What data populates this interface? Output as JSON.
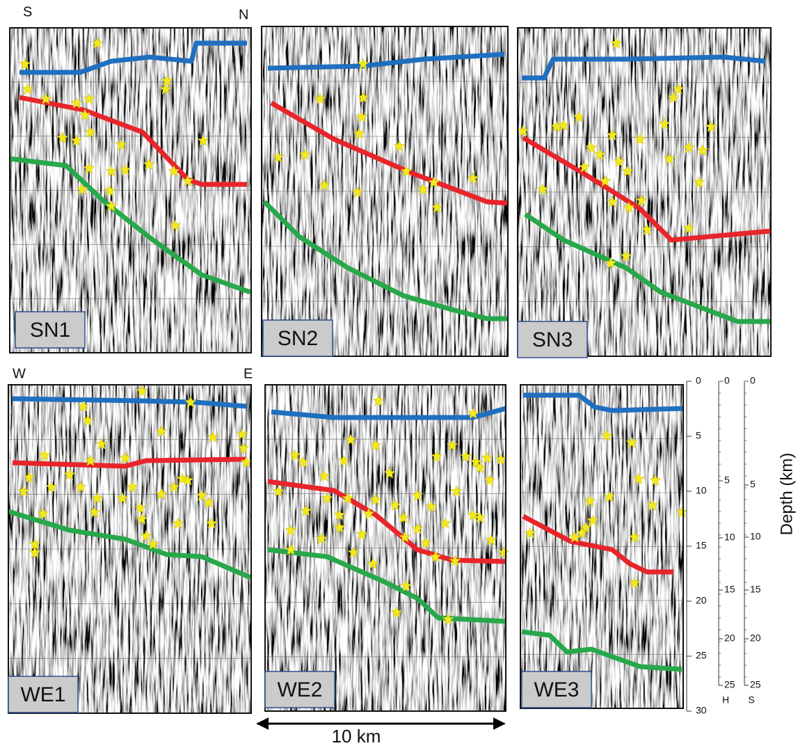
{
  "panels": [
    {
      "label": "SN1"
    },
    {
      "label": "SN2"
    },
    {
      "label": "SN3"
    },
    {
      "label": "WE1"
    },
    {
      "label": "WE2"
    },
    {
      "label": "WE3"
    }
  ],
  "orientation": {
    "top_left": "S",
    "top_right": "N",
    "bottom_left": "W",
    "bottom_right": "E"
  },
  "depth_scale": {
    "title": "Depth (km)",
    "main_ticks": [
      0,
      5,
      10,
      15,
      20,
      25,
      30
    ],
    "h_ticks": [
      0,
      5,
      10,
      15,
      20,
      25
    ],
    "h_label": "H",
    "s_ticks": [
      0,
      5,
      10,
      15,
      20,
      25
    ],
    "s_label": "S"
  },
  "scale_bar": "10 km"
}
